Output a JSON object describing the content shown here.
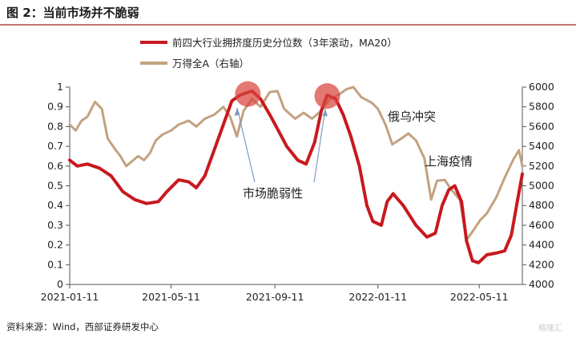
{
  "title": "图 2：当前市场并不脆弱",
  "source": "资料来源：Wind，西部证券研发中心",
  "watermark": "格隆汇",
  "chart_data": {
    "type": "line",
    "title": "图 2：当前市场并不脆弱",
    "x_ticks": [
      "2021-01-11",
      "2021-05-11",
      "2021-09-11",
      "2022-01-11",
      "2022-05-11"
    ],
    "x_range": [
      "2021-01-11",
      "2022-07-01"
    ],
    "y_left": {
      "lim": [
        0,
        1
      ],
      "ticks": [
        "0",
        "0.1",
        "0.2",
        "0.3",
        "0.4",
        "0.5",
        "0.6",
        "0.7",
        "0.8",
        "0.9",
        "1"
      ]
    },
    "y_right": {
      "lim": [
        4000,
        6000
      ],
      "ticks": [
        "4000",
        "4200",
        "4400",
        "4600",
        "4800",
        "5000",
        "5200",
        "5400",
        "5600",
        "5800",
        "6000"
      ]
    },
    "grid": false,
    "legend_position": "top-right",
    "series": [
      {
        "name": "前四大行业拥挤度历史分位数（3年滚动，MA20）",
        "axis": "left",
        "color": "#c8191f",
        "points": [
          [
            "2021-01-11",
            0.63
          ],
          [
            "2021-01-20",
            0.6
          ],
          [
            "2021-02-01",
            0.61
          ],
          [
            "2021-02-15",
            0.59
          ],
          [
            "2021-03-01",
            0.55
          ],
          [
            "2021-03-15",
            0.47
          ],
          [
            "2021-03-29",
            0.43
          ],
          [
            "2021-04-12",
            0.41
          ],
          [
            "2021-04-26",
            0.42
          ],
          [
            "2021-05-06",
            0.47
          ],
          [
            "2021-05-20",
            0.53
          ],
          [
            "2021-06-01",
            0.52
          ],
          [
            "2021-06-10",
            0.49
          ],
          [
            "2021-06-20",
            0.55
          ],
          [
            "2021-07-01",
            0.68
          ],
          [
            "2021-07-12",
            0.81
          ],
          [
            "2021-07-22",
            0.93
          ],
          [
            "2021-08-01",
            0.96
          ],
          [
            "2021-08-15",
            0.98
          ],
          [
            "2021-08-25",
            0.94
          ],
          [
            "2021-09-05",
            0.86
          ],
          [
            "2021-09-15",
            0.78
          ],
          [
            "2021-09-25",
            0.7
          ],
          [
            "2021-10-08",
            0.63
          ],
          [
            "2021-10-18",
            0.61
          ],
          [
            "2021-10-28",
            0.72
          ],
          [
            "2021-11-05",
            0.88
          ],
          [
            "2021-11-12",
            0.96
          ],
          [
            "2021-11-22",
            0.94
          ],
          [
            "2021-12-01",
            0.86
          ],
          [
            "2021-12-10",
            0.75
          ],
          [
            "2021-12-20",
            0.6
          ],
          [
            "2021-12-29",
            0.4
          ],
          [
            "2022-01-05",
            0.32
          ],
          [
            "2022-01-15",
            0.3
          ],
          [
            "2022-01-22",
            0.42
          ],
          [
            "2022-01-29",
            0.46
          ],
          [
            "2022-02-10",
            0.4
          ],
          [
            "2022-02-25",
            0.3
          ],
          [
            "2022-03-10",
            0.24
          ],
          [
            "2022-03-20",
            0.26
          ],
          [
            "2022-03-28",
            0.4
          ],
          [
            "2022-04-05",
            0.48
          ],
          [
            "2022-04-12",
            0.5
          ],
          [
            "2022-04-20",
            0.42
          ],
          [
            "2022-04-26",
            0.22
          ],
          [
            "2022-05-03",
            0.12
          ],
          [
            "2022-05-10",
            0.11
          ],
          [
            "2022-05-20",
            0.15
          ],
          [
            "2022-06-01",
            0.16
          ],
          [
            "2022-06-10",
            0.17
          ],
          [
            "2022-06-18",
            0.25
          ],
          [
            "2022-06-25",
            0.42
          ],
          [
            "2022-07-01",
            0.56
          ]
        ]
      },
      {
        "name": "万得全A（右轴）",
        "axis": "right",
        "color": "#c2a27f",
        "points": [
          [
            "2021-01-11",
            5620
          ],
          [
            "2021-01-18",
            5560
          ],
          [
            "2021-01-25",
            5660
          ],
          [
            "2021-02-01",
            5700
          ],
          [
            "2021-02-10",
            5850
          ],
          [
            "2021-02-18",
            5780
          ],
          [
            "2021-02-25",
            5480
          ],
          [
            "2021-03-05",
            5380
          ],
          [
            "2021-03-12",
            5300
          ],
          [
            "2021-03-19",
            5200
          ],
          [
            "2021-03-26",
            5250
          ],
          [
            "2021-04-02",
            5300
          ],
          [
            "2021-04-09",
            5260
          ],
          [
            "2021-04-16",
            5330
          ],
          [
            "2021-04-23",
            5460
          ],
          [
            "2021-05-01",
            5520
          ],
          [
            "2021-05-11",
            5560
          ],
          [
            "2021-05-20",
            5620
          ],
          [
            "2021-06-01",
            5660
          ],
          [
            "2021-06-10",
            5600
          ],
          [
            "2021-06-20",
            5680
          ],
          [
            "2021-07-01",
            5720
          ],
          [
            "2021-07-12",
            5800
          ],
          [
            "2021-07-20",
            5700
          ],
          [
            "2021-07-28",
            5500
          ],
          [
            "2021-08-05",
            5760
          ],
          [
            "2021-08-15",
            5880
          ],
          [
            "2021-08-25",
            5800
          ],
          [
            "2021-09-05",
            5950
          ],
          [
            "2021-09-14",
            5960
          ],
          [
            "2021-09-22",
            5780
          ],
          [
            "2021-10-05",
            5680
          ],
          [
            "2021-10-15",
            5740
          ],
          [
            "2021-10-25",
            5680
          ],
          [
            "2021-11-05",
            5760
          ],
          [
            "2021-11-15",
            5880
          ],
          [
            "2021-11-25",
            5920
          ],
          [
            "2021-12-05",
            5980
          ],
          [
            "2021-12-13",
            6000
          ],
          [
            "2021-12-22",
            5900
          ],
          [
            "2022-01-04",
            5840
          ],
          [
            "2022-01-11",
            5780
          ],
          [
            "2022-01-20",
            5620
          ],
          [
            "2022-01-28",
            5420
          ],
          [
            "2022-02-08",
            5480
          ],
          [
            "2022-02-16",
            5530
          ],
          [
            "2022-02-25",
            5460
          ],
          [
            "2022-03-07",
            5280
          ],
          [
            "2022-03-15",
            4860
          ],
          [
            "2022-03-22",
            5050
          ],
          [
            "2022-03-31",
            5060
          ],
          [
            "2022-04-08",
            4960
          ],
          [
            "2022-04-18",
            4860
          ],
          [
            "2022-04-26",
            4450
          ],
          [
            "2022-05-05",
            4560
          ],
          [
            "2022-05-12",
            4650
          ],
          [
            "2022-05-20",
            4720
          ],
          [
            "2022-05-31",
            4880
          ],
          [
            "2022-06-10",
            5080
          ],
          [
            "2022-06-20",
            5260
          ],
          [
            "2022-06-27",
            5360
          ],
          [
            "2022-07-01",
            5200
          ]
        ]
      }
    ],
    "annotations": [
      {
        "text": "市场脆弱性"
      },
      {
        "text": "俄乌冲突"
      },
      {
        "text": "上海疫情"
      }
    ],
    "highlights": [
      {
        "x": "2021-08-10",
        "y": 0.965,
        "axis": "left"
      },
      {
        "x": "2021-11-12",
        "y": 0.955,
        "axis": "left"
      }
    ]
  }
}
